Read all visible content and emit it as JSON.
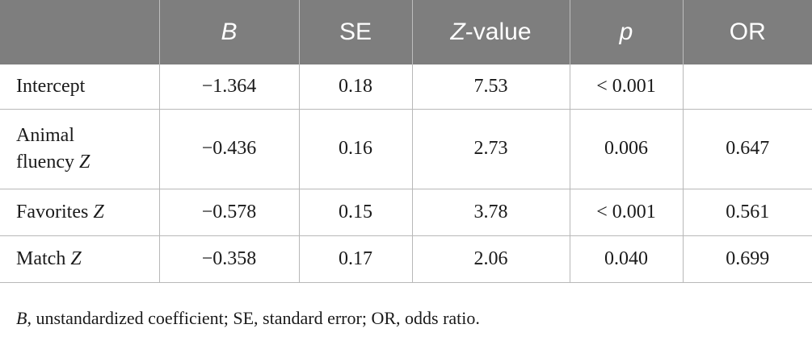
{
  "table": {
    "header": {
      "label_col": "",
      "b": "B",
      "se": "SE",
      "z_italic": "Z",
      "z_suffix": "-value",
      "p": "p",
      "or": "OR"
    },
    "rows": [
      {
        "label": "Intercept",
        "label_italic": "",
        "b": "−1.364",
        "se": "0.18",
        "z": "7.53",
        "p": "< 0.001",
        "or": ""
      },
      {
        "label_line1": "Animal",
        "label_line2": "fluency ",
        "label_italic": "Z",
        "b": "−0.436",
        "se": "0.16",
        "z": "2.73",
        "p": "0.006",
        "or": "0.647"
      },
      {
        "label": "Favorites ",
        "label_italic": "Z",
        "b": "−0.578",
        "se": "0.15",
        "z": "3.78",
        "p": "< 0.001",
        "or": "0.561"
      },
      {
        "label": "Match ",
        "label_italic": "Z",
        "b": "−0.358",
        "se": "0.17",
        "z": "2.06",
        "p": "0.040",
        "or": "0.699"
      }
    ]
  },
  "footnote": {
    "b_italic": "B",
    "text": ", unstandardized coefficient; SE, standard error; OR, odds ratio."
  },
  "colors": {
    "header_bg": "#7e7e7e",
    "header_text": "#ffffff",
    "grid_line": "#b8b8b8"
  }
}
